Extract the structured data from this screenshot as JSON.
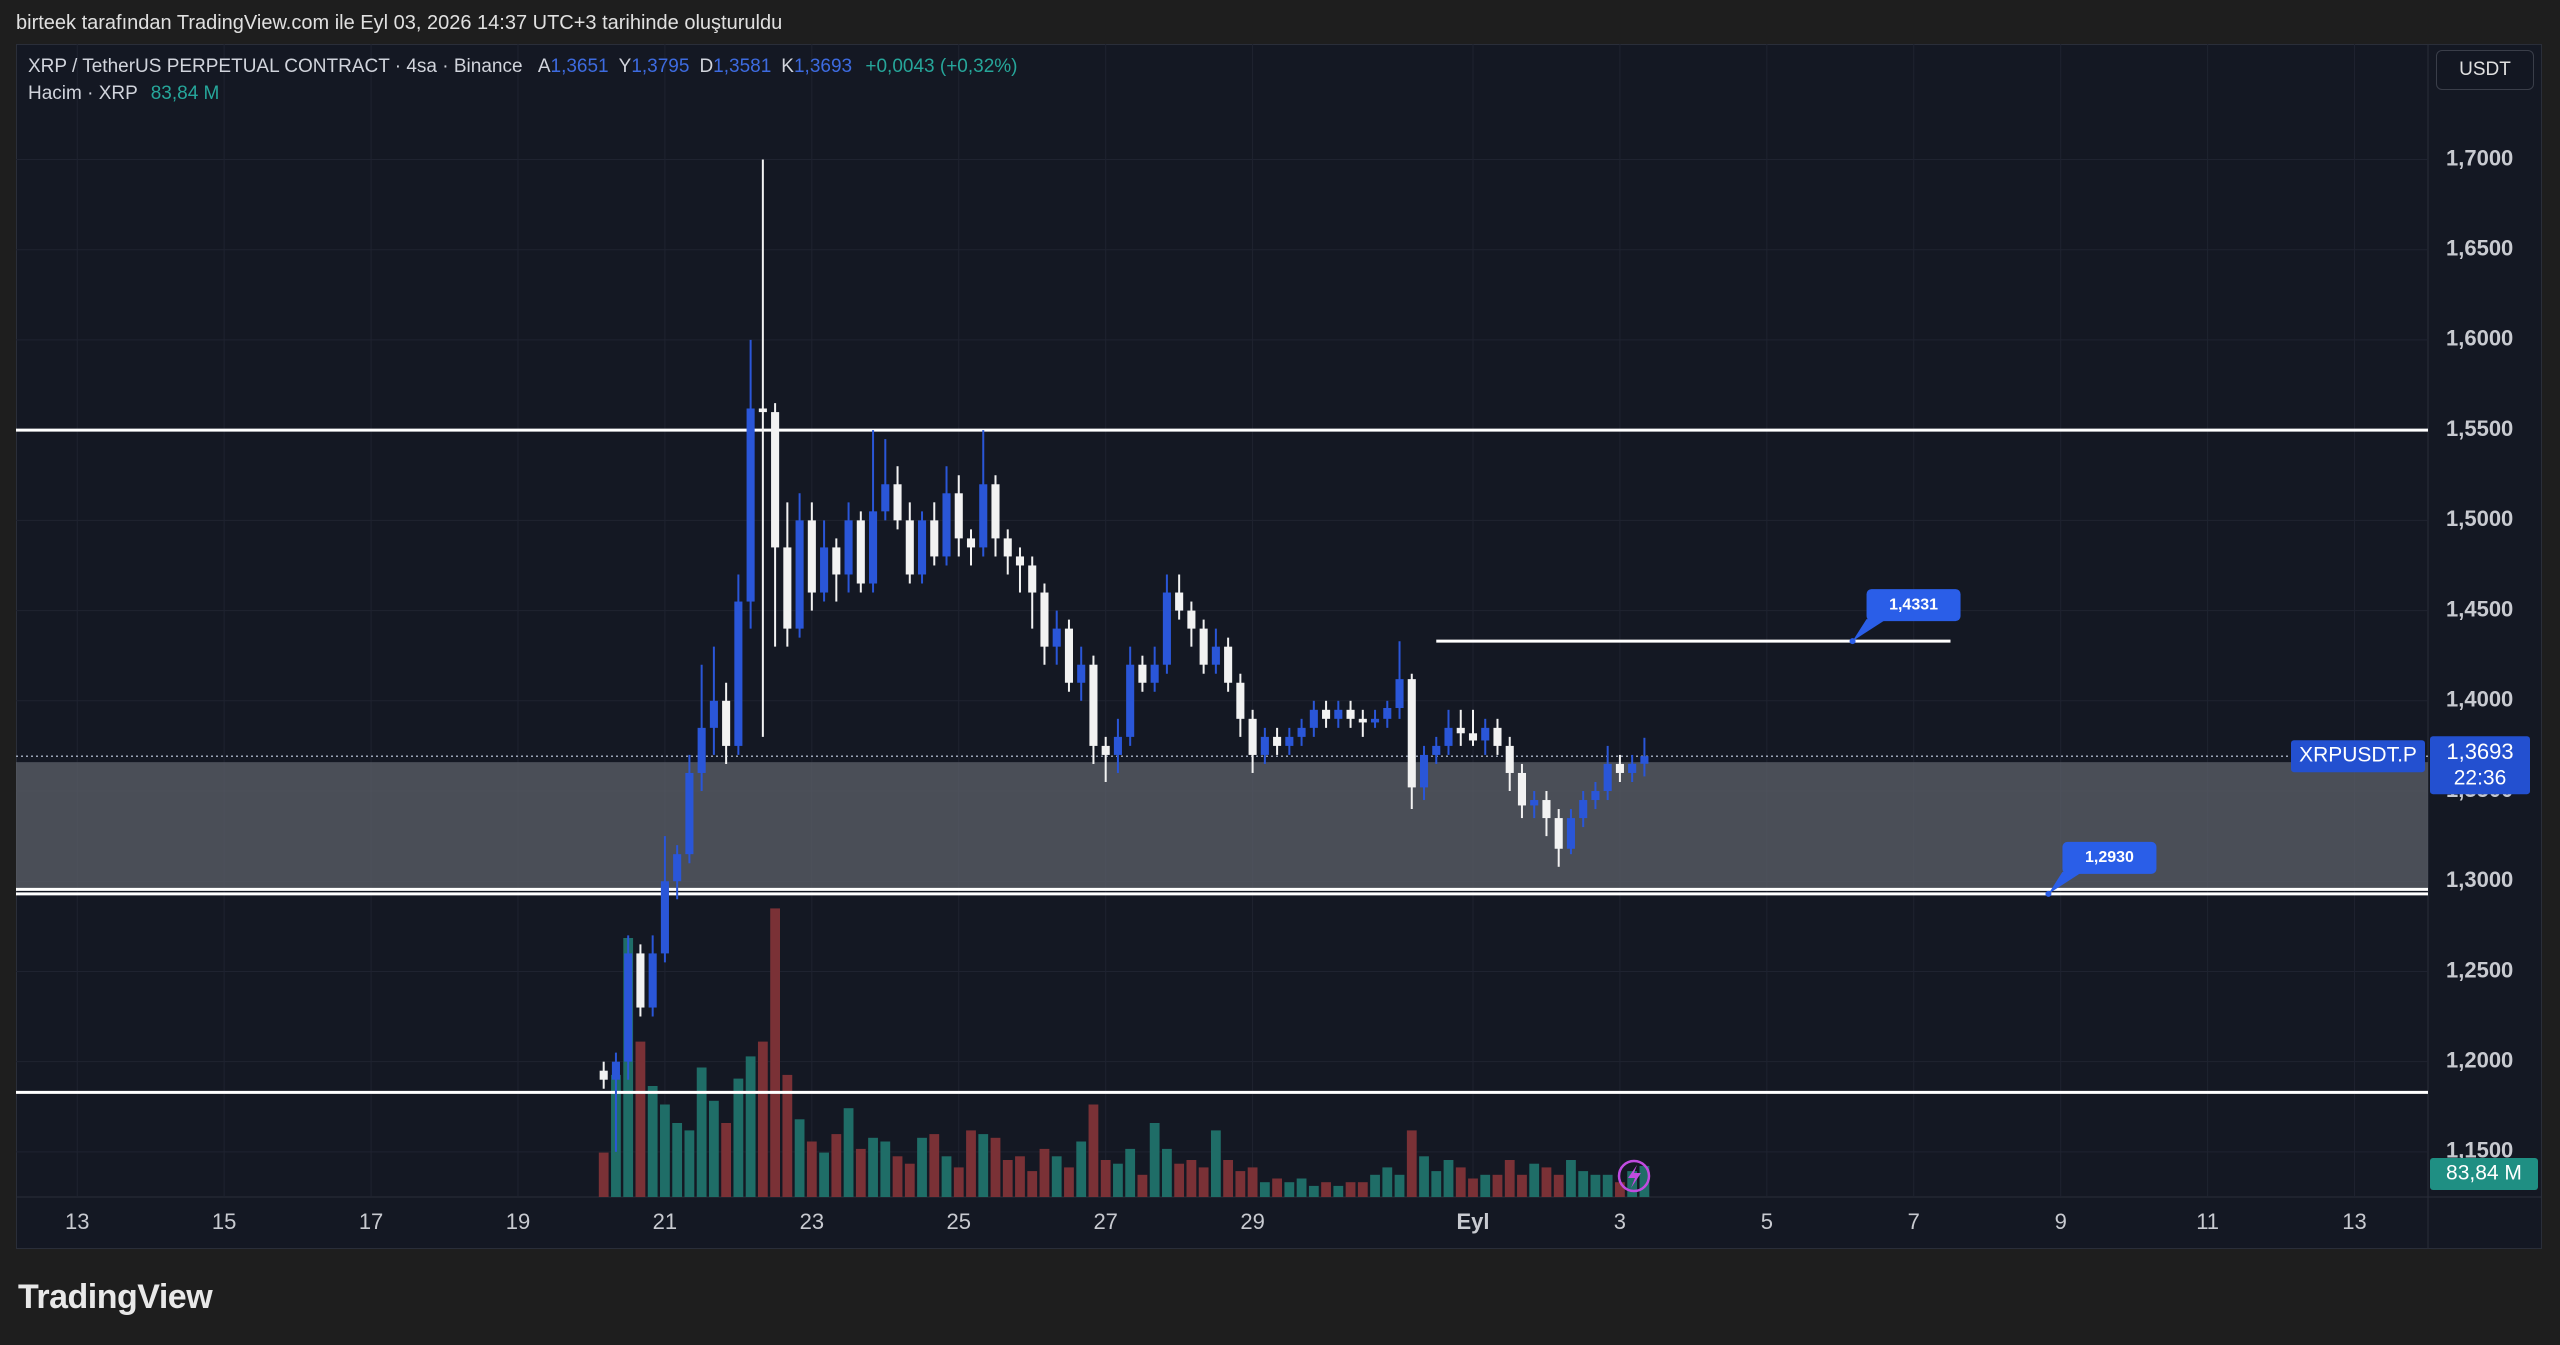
{
  "header": "birteek tarafından TradingView.com ile Eyl 03, 2026 14:37 UTC+3 tarihinde oluşturuldu",
  "logo": "TradingView",
  "chart_data": {
    "type": "candlestick",
    "symbol": "XRP / TetherUS PERPETUAL CONTRACT · 4sa · Binance",
    "legend": [
      {
        "key": "A",
        "value": "1,3651"
      },
      {
        "key": "Y",
        "value": "1,3795"
      },
      {
        "key": "D",
        "value": "1,3581"
      },
      {
        "key": "K",
        "value": "1,3693"
      }
    ],
    "change": "+0,0043 (+0,32%)",
    "volume_title": "Hacim · XRP",
    "volume_label": "83,84 M",
    "currency": "USDT",
    "symbol_label": "XRPUSDT.P",
    "price_label": "1,3693",
    "countdown": "22:36",
    "up_color": "#2a56d8",
    "down_color": "#f2f2f2",
    "volume_up_color": "#1f6d67",
    "volume_down_color": "#7a3136",
    "grid": true,
    "xlim": [
      "2026-08-12T04:00",
      "2026-09-14T00:00"
    ],
    "ylim": [
      1.125,
      1.764
    ],
    "xticks": [
      {
        "value": "2026-08-13T00:00",
        "label": "13"
      },
      {
        "value": "2026-08-15T00:00",
        "label": "15"
      },
      {
        "value": "2026-08-17T00:00",
        "label": "17"
      },
      {
        "value": "2026-08-19T00:00",
        "label": "19"
      },
      {
        "value": "2026-08-21T00:00",
        "label": "21"
      },
      {
        "value": "2026-08-23T00:00",
        "label": "23"
      },
      {
        "value": "2026-08-25T00:00",
        "label": "25"
      },
      {
        "value": "2026-08-27T00:00",
        "label": "27"
      },
      {
        "value": "2026-08-29T00:00",
        "label": "29"
      },
      {
        "value": "2026-09-01T00:00",
        "label": "Eyl"
      },
      {
        "value": "2026-09-03T00:00",
        "label": "3"
      },
      {
        "value": "2026-09-05T00:00",
        "label": "5"
      },
      {
        "value": "2026-09-07T00:00",
        "label": "7"
      },
      {
        "value": "2026-09-09T00:00",
        "label": "9"
      },
      {
        "value": "2026-09-11T00:00",
        "label": "11"
      },
      {
        "value": "2026-09-13T00:00",
        "label": "13"
      }
    ],
    "yticks": [
      {
        "value": 1.15,
        "label": "1,1500"
      },
      {
        "value": 1.2,
        "label": "1,2000"
      },
      {
        "value": 1.25,
        "label": "1,2500"
      },
      {
        "value": 1.3,
        "label": "1,3000"
      },
      {
        "value": 1.35,
        "label": "1,3500"
      },
      {
        "value": 1.4,
        "label": "1,4000"
      },
      {
        "value": 1.45,
        "label": "1,4500"
      },
      {
        "value": 1.5,
        "label": "1,5000"
      },
      {
        "value": 1.55,
        "label": "1,5500"
      },
      {
        "value": 1.6,
        "label": "1,6000"
      },
      {
        "value": 1.65,
        "label": "1,6500"
      },
      {
        "value": 1.7,
        "label": "1,7000"
      }
    ],
    "levels": [
      1.55,
      1.2955,
      1.293,
      1.183
    ],
    "zone": [
      1.2955,
      1.366
    ],
    "current": 1.3693,
    "segment": {
      "value": 1.4331,
      "x": [
        "2026-08-31T12:00",
        "2026-09-07T12:00"
      ]
    },
    "callouts": [
      {
        "value": 1.4331,
        "label": "1,4331",
        "x": "2026-09-06T04:00"
      },
      {
        "value": 1.293,
        "label": "1,2930",
        "x": "2026-09-08T20:00"
      }
    ],
    "x": [
      "2026-08-20T04:00",
      "2026-08-20T08:00",
      "2026-08-20T12:00",
      "2026-08-20T16:00",
      "2026-08-20T20:00",
      "2026-08-21T00:00",
      "2026-08-21T04:00",
      "2026-08-21T08:00",
      "2026-08-21T12:00",
      "2026-08-21T16:00",
      "2026-08-21T20:00",
      "2026-08-22T00:00",
      "2026-08-22T04:00",
      "2026-08-22T08:00",
      "2026-08-22T12:00",
      "2026-08-22T16:00",
      "2026-08-22T20:00",
      "2026-08-23T00:00",
      "2026-08-23T04:00",
      "2026-08-23T08:00",
      "2026-08-23T12:00",
      "2026-08-23T16:00",
      "2026-08-23T20:00",
      "2026-08-24T00:00",
      "2026-08-24T04:00",
      "2026-08-24T08:00",
      "2026-08-24T12:00",
      "2026-08-24T16:00",
      "2026-08-24T20:00",
      "2026-08-25T00:00",
      "2026-08-25T04:00",
      "2026-08-25T08:00",
      "2026-08-25T12:00",
      "2026-08-25T16:00",
      "2026-08-25T20:00",
      "2026-08-26T00:00",
      "2026-08-26T04:00",
      "2026-08-26T08:00",
      "2026-08-26T12:00",
      "2026-08-26T16:00",
      "2026-08-26T20:00",
      "2026-08-27T00:00",
      "2026-08-27T04:00",
      "2026-08-27T08:00",
      "2026-08-27T12:00",
      "2026-08-27T16:00",
      "2026-08-27T20:00",
      "2026-08-28T00:00",
      "2026-08-28T04:00",
      "2026-08-28T08:00",
      "2026-08-28T12:00",
      "2026-08-28T16:00",
      "2026-08-28T20:00",
      "2026-08-29T00:00",
      "2026-08-29T04:00",
      "2026-08-29T08:00",
      "2026-08-29T12:00",
      "2026-08-29T16:00",
      "2026-08-29T20:00",
      "2026-08-30T00:00",
      "2026-08-30T04:00",
      "2026-08-30T08:00",
      "2026-08-30T12:00",
      "2026-08-30T16:00",
      "2026-08-30T20:00",
      "2026-08-31T00:00",
      "2026-08-31T04:00",
      "2026-08-31T08:00",
      "2026-08-31T12:00",
      "2026-08-31T16:00",
      "2026-08-31T20:00",
      "2026-09-01T00:00",
      "2026-09-01T04:00",
      "2026-09-01T08:00",
      "2026-09-01T12:00",
      "2026-09-01T16:00",
      "2026-09-01T20:00",
      "2026-09-02T00:00",
      "2026-09-02T04:00",
      "2026-09-02T08:00",
      "2026-09-02T12:00",
      "2026-09-02T16:00",
      "2026-09-02T20:00",
      "2026-09-03T00:00",
      "2026-09-03T04:00",
      "2026-09-03T08:00"
    ],
    "candles": [
      [
        1.195,
        1.2,
        1.185,
        1.19
      ],
      [
        1.19,
        1.205,
        1.15,
        1.2
      ],
      [
        1.2,
        1.27,
        1.19,
        1.26
      ],
      [
        1.26,
        1.265,
        1.225,
        1.23
      ],
      [
        1.23,
        1.27,
        1.225,
        1.26
      ],
      [
        1.26,
        1.325,
        1.255,
        1.3
      ],
      [
        1.3,
        1.32,
        1.29,
        1.315
      ],
      [
        1.315,
        1.37,
        1.31,
        1.36
      ],
      [
        1.36,
        1.42,
        1.35,
        1.385
      ],
      [
        1.385,
        1.43,
        1.37,
        1.4
      ],
      [
        1.4,
        1.41,
        1.365,
        1.375
      ],
      [
        1.375,
        1.47,
        1.37,
        1.455
      ],
      [
        1.455,
        1.6,
        1.44,
        1.562
      ],
      [
        1.562,
        1.7,
        1.38,
        1.56
      ],
      [
        1.56,
        1.565,
        1.43,
        1.485
      ],
      [
        1.485,
        1.51,
        1.43,
        1.44
      ],
      [
        1.44,
        1.515,
        1.435,
        1.5
      ],
      [
        1.5,
        1.51,
        1.45,
        1.46
      ],
      [
        1.46,
        1.5,
        1.455,
        1.485
      ],
      [
        1.485,
        1.49,
        1.455,
        1.47
      ],
      [
        1.47,
        1.51,
        1.46,
        1.5
      ],
      [
        1.5,
        1.505,
        1.46,
        1.465
      ],
      [
        1.465,
        1.55,
        1.46,
        1.505
      ],
      [
        1.505,
        1.545,
        1.5,
        1.52
      ],
      [
        1.52,
        1.53,
        1.495,
        1.5
      ],
      [
        1.5,
        1.51,
        1.465,
        1.47
      ],
      [
        1.47,
        1.505,
        1.465,
        1.5
      ],
      [
        1.5,
        1.51,
        1.475,
        1.48
      ],
      [
        1.48,
        1.53,
        1.475,
        1.515
      ],
      [
        1.515,
        1.525,
        1.48,
        1.49
      ],
      [
        1.49,
        1.495,
        1.475,
        1.485
      ],
      [
        1.485,
        1.55,
        1.48,
        1.52
      ],
      [
        1.52,
        1.525,
        1.48,
        1.49
      ],
      [
        1.49,
        1.495,
        1.47,
        1.48
      ],
      [
        1.48,
        1.485,
        1.46,
        1.475
      ],
      [
        1.475,
        1.48,
        1.44,
        1.46
      ],
      [
        1.46,
        1.465,
        1.42,
        1.43
      ],
      [
        1.43,
        1.45,
        1.42,
        1.44
      ],
      [
        1.44,
        1.445,
        1.405,
        1.41
      ],
      [
        1.41,
        1.43,
        1.4,
        1.42
      ],
      [
        1.42,
        1.425,
        1.365,
        1.375
      ],
      [
        1.375,
        1.38,
        1.355,
        1.37
      ],
      [
        1.37,
        1.39,
        1.36,
        1.38
      ],
      [
        1.38,
        1.43,
        1.375,
        1.42
      ],
      [
        1.42,
        1.425,
        1.405,
        1.41
      ],
      [
        1.41,
        1.43,
        1.405,
        1.42
      ],
      [
        1.42,
        1.47,
        1.415,
        1.46
      ],
      [
        1.46,
        1.47,
        1.445,
        1.45
      ],
      [
        1.45,
        1.455,
        1.43,
        1.44
      ],
      [
        1.44,
        1.445,
        1.415,
        1.42
      ],
      [
        1.42,
        1.44,
        1.415,
        1.43
      ],
      [
        1.43,
        1.435,
        1.405,
        1.41
      ],
      [
        1.41,
        1.415,
        1.38,
        1.39
      ],
      [
        1.39,
        1.395,
        1.36,
        1.37
      ],
      [
        1.37,
        1.385,
        1.365,
        1.38
      ],
      [
        1.38,
        1.385,
        1.37,
        1.375
      ],
      [
        1.375,
        1.385,
        1.37,
        1.38
      ],
      [
        1.38,
        1.39,
        1.375,
        1.385
      ],
      [
        1.385,
        1.4,
        1.38,
        1.395
      ],
      [
        1.395,
        1.4,
        1.385,
        1.39
      ],
      [
        1.39,
        1.4,
        1.385,
        1.395
      ],
      [
        1.395,
        1.4,
        1.385,
        1.39
      ],
      [
        1.39,
        1.395,
        1.38,
        1.388
      ],
      [
        1.388,
        1.395,
        1.385,
        1.39
      ],
      [
        1.39,
        1.4,
        1.385,
        1.396
      ],
      [
        1.396,
        1.433,
        1.39,
        1.412
      ],
      [
        1.412,
        1.415,
        1.34,
        1.352
      ],
      [
        1.352,
        1.375,
        1.345,
        1.37
      ],
      [
        1.37,
        1.38,
        1.365,
        1.375
      ],
      [
        1.375,
        1.395,
        1.37,
        1.385
      ],
      [
        1.385,
        1.395,
        1.375,
        1.382
      ],
      [
        1.382,
        1.395,
        1.375,
        1.378
      ],
      [
        1.378,
        1.39,
        1.37,
        1.385
      ],
      [
        1.385,
        1.39,
        1.37,
        1.375
      ],
      [
        1.375,
        1.38,
        1.35,
        1.36
      ],
      [
        1.36,
        1.365,
        1.335,
        1.342
      ],
      [
        1.342,
        1.35,
        1.335,
        1.345
      ],
      [
        1.345,
        1.35,
        1.325,
        1.335
      ],
      [
        1.335,
        1.34,
        1.308,
        1.318
      ],
      [
        1.318,
        1.34,
        1.315,
        1.335
      ],
      [
        1.335,
        1.35,
        1.33,
        1.345
      ],
      [
        1.345,
        1.355,
        1.34,
        1.35
      ],
      [
        1.35,
        1.375,
        1.345,
        1.365
      ],
      [
        1.365,
        1.37,
        1.355,
        1.36
      ],
      [
        1.36,
        1.37,
        1.355,
        1.3651
      ],
      [
        1.3651,
        1.3795,
        1.3581,
        1.3693
      ]
    ],
    "volume": [
      120,
      330,
      700,
      420,
      300,
      250,
      200,
      180,
      350,
      260,
      200,
      320,
      380,
      420,
      780,
      330,
      210,
      150,
      120,
      170,
      240,
      130,
      160,
      150,
      110,
      90,
      160,
      170,
      110,
      80,
      180,
      170,
      160,
      100,
      110,
      70,
      130,
      110,
      80,
      150,
      250,
      100,
      90,
      130,
      60,
      200,
      130,
      90,
      100,
      80,
      180,
      100,
      70,
      80,
      40,
      50,
      40,
      50,
      30,
      40,
      30,
      40,
      40,
      60,
      80,
      60,
      180,
      110,
      70,
      100,
      80,
      50,
      60,
      60,
      100,
      60,
      90,
      80,
      60,
      100,
      70,
      60,
      60,
      40,
      70,
      83.84
    ]
  }
}
